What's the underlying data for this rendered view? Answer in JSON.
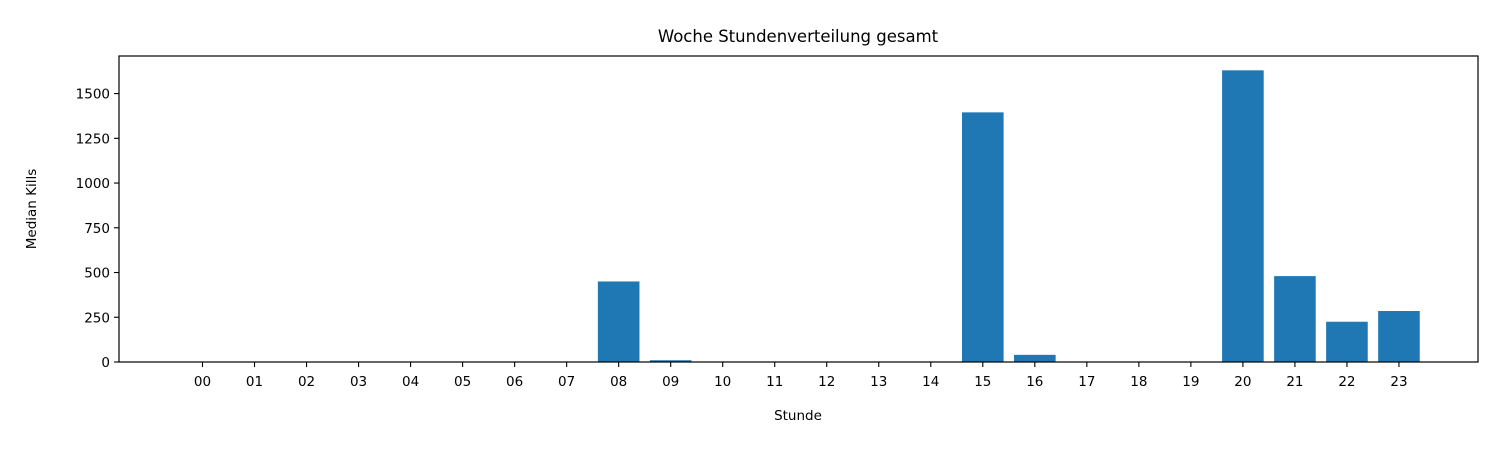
{
  "chart_data": {
    "type": "bar",
    "title": "Woche Stundenverteilung gesamt",
    "xlabel": "Stunde",
    "ylabel": "Median Kills",
    "categories": [
      "00",
      "01",
      "02",
      "03",
      "04",
      "05",
      "06",
      "07",
      "08",
      "09",
      "10",
      "11",
      "12",
      "13",
      "14",
      "15",
      "16",
      "17",
      "18",
      "19",
      "20",
      "21",
      "22",
      "23"
    ],
    "values": [
      0,
      0,
      0,
      0,
      0,
      0,
      0,
      0,
      450,
      10,
      0,
      0,
      0,
      0,
      0,
      1395,
      40,
      0,
      0,
      0,
      1630,
      480,
      225,
      285
    ],
    "ylim": [
      0,
      1710
    ],
    "yticks": [
      0,
      250,
      500,
      750,
      1000,
      1250,
      1500
    ],
    "grid": false,
    "legend": "none",
    "bar_color": "#1f77b4"
  }
}
